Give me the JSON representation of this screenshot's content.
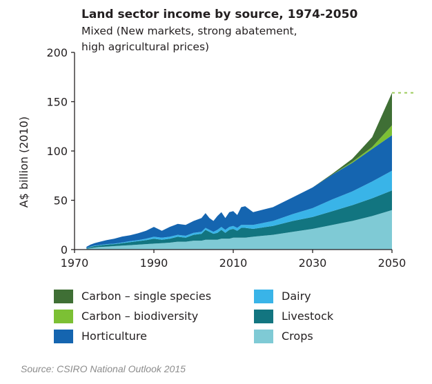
{
  "chart_data": {
    "type": "area",
    "stacked": true,
    "title": "Land sector income by source, 1974-2050",
    "subtitle_line1": "Mixed (New markets, strong abatement,",
    "subtitle_line2": "high agricultural prices)",
    "ylabel": "A$ billion (2010)",
    "xlabel": "",
    "xlim": [
      1970,
      2050
    ],
    "ylim": [
      0,
      200
    ],
    "x_ticks": [
      1970,
      1990,
      2010,
      2030,
      2050
    ],
    "y_ticks": [
      0,
      50,
      100,
      150,
      200
    ],
    "grid": false,
    "legend_position": "bottom",
    "reference_value": 159,
    "x": [
      1973,
      1974,
      1975,
      1976,
      1978,
      1980,
      1982,
      1984,
      1986,
      1988,
      1990,
      1992,
      1994,
      1996,
      1998,
      2000,
      2002,
      2003,
      2004,
      2005,
      2006,
      2007,
      2008,
      2009,
      2010,
      2011,
      2012,
      2013,
      2015,
      2020,
      2025,
      2030,
      2035,
      2040,
      2045,
      2050
    ],
    "series": [
      {
        "name": "Crops",
        "color": "#7fcad5",
        "values": [
          0.5,
          1.5,
          2,
          2.5,
          3,
          3.5,
          4,
          4.5,
          5,
          5.5,
          6,
          6.5,
          7,
          8,
          8,
          9,
          9,
          10,
          10,
          10,
          10,
          11,
          11,
          11,
          12,
          12,
          12,
          12,
          13,
          15,
          18,
          21,
          25,
          29,
          34,
          40
        ]
      },
      {
        "name": "Livestock",
        "color": "#127580",
        "values": [
          0.5,
          1,
          1.5,
          1.5,
          2,
          2,
          2.5,
          3,
          3.5,
          4,
          5,
          3.5,
          4,
          5,
          4,
          6,
          7,
          10,
          8,
          6,
          7,
          9,
          6,
          9,
          9,
          7,
          10,
          10,
          8,
          9,
          11,
          12,
          14,
          16,
          18,
          20
        ]
      },
      {
        "name": "Dairy",
        "color": "#39b4e8",
        "values": [
          0.3,
          0.5,
          0.5,
          0.5,
          0.5,
          0.5,
          0.7,
          1,
          1,
          1.5,
          2,
          2,
          2,
          2,
          2,
          2,
          2,
          2,
          2,
          2,
          3,
          3,
          3,
          3,
          3,
          3,
          3,
          3,
          4,
          5,
          7,
          9,
          12,
          14,
          17,
          20
        ]
      },
      {
        "name": "Horticulture",
        "color": "#1565b0",
        "values": [
          1.5,
          2,
          2.5,
          3,
          4,
          5,
          6,
          6,
          7,
          8,
          10,
          7,
          10,
          11,
          11,
          12,
          14,
          15,
          12,
          11,
          14,
          15,
          12,
          15,
          15,
          13,
          18,
          19,
          13,
          14,
          17,
          21,
          25,
          29,
          33,
          36
        ]
      },
      {
        "name": "Carbon – biodiversity",
        "color": "#7cc034",
        "values": [
          0,
          0,
          0,
          0,
          0,
          0,
          0,
          0,
          0,
          0,
          0,
          0,
          0,
          0,
          0,
          0,
          0,
          0,
          0,
          0,
          0,
          0,
          0,
          0,
          0,
          0,
          0,
          0,
          0,
          0,
          0,
          0,
          0,
          1,
          2,
          10
        ]
      },
      {
        "name": "Carbon – single species",
        "color": "#3f6f35",
        "values": [
          0,
          0,
          0,
          0,
          0,
          0,
          0,
          0,
          0,
          0,
          0,
          0,
          0,
          0,
          0,
          0,
          0,
          0,
          0,
          0,
          0,
          0,
          0,
          0,
          0,
          0,
          0,
          0,
          0,
          0,
          0,
          0,
          1,
          3,
          10,
          33
        ]
      }
    ]
  },
  "legend": [
    {
      "label": "Carbon – single species",
      "color": "#3f6f35"
    },
    {
      "label": "Dairy",
      "color": "#39b4e8"
    },
    {
      "label": "Carbon – biodiversity",
      "color": "#7cc034"
    },
    {
      "label": "Livestock",
      "color": "#127580"
    },
    {
      "label": "Horticulture",
      "color": "#1565b0"
    },
    {
      "label": "Crops",
      "color": "#7fcad5"
    }
  ],
  "source": "Source: CSIRO National Outlook 2015",
  "reference_line_color": "#9ccb5a"
}
